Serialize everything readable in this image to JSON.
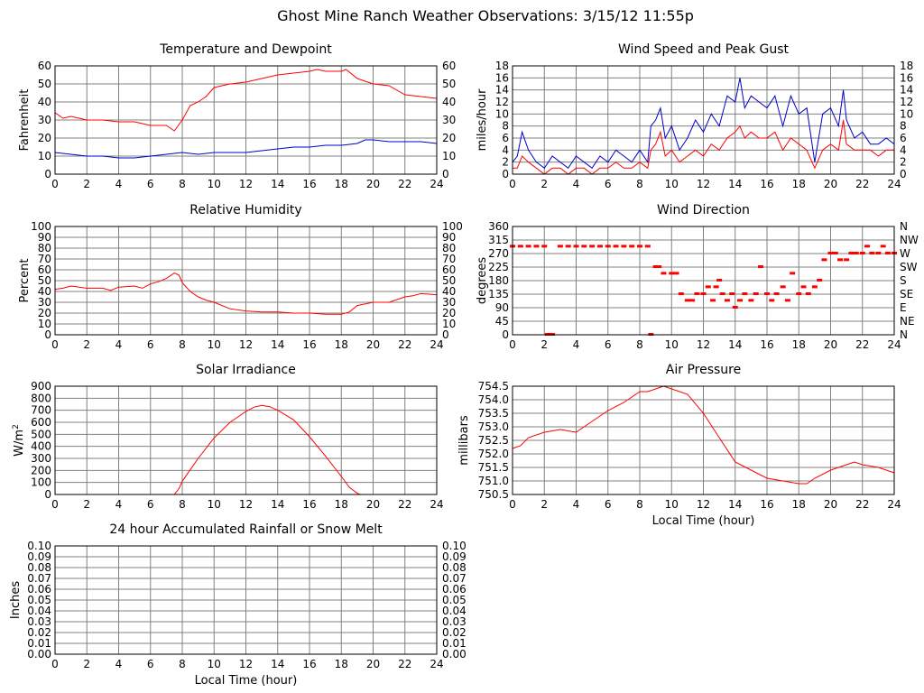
{
  "page": {
    "title": "Ghost Mine Ranch Weather Observations: 3/15/12 11:55p"
  },
  "colors": {
    "grid": "#808080",
    "frame": "#000000",
    "primary_series": "#ff0000",
    "secondary_series": "#0000cc"
  },
  "chart_data": [
    {
      "id": "temp",
      "type": "line",
      "title": "Temperature and Dewpoint",
      "xlabel": "",
      "ylabel": "Fahrenheit",
      "xlim": [
        0,
        24
      ],
      "ylim": [
        0,
        60
      ],
      "x_ticks": [
        0,
        2,
        4,
        6,
        8,
        10,
        12,
        14,
        16,
        18,
        20,
        22,
        24
      ],
      "y_ticks": [
        0,
        10,
        20,
        30,
        40,
        50,
        60
      ],
      "right_ticks": [
        "0",
        "10",
        "20",
        "30",
        "40",
        "50",
        "60"
      ],
      "grid": true,
      "series": [
        {
          "color": "#ff0000",
          "x": [
            0,
            0.5,
            1,
            2,
            3,
            4,
            5,
            6,
            7,
            7.5,
            8,
            8.5,
            9,
            9.5,
            10,
            11,
            12,
            13,
            14,
            15,
            16,
            16.5,
            17,
            18,
            18.3,
            19,
            20,
            21,
            22,
            23,
            24
          ],
          "y": [
            34,
            31,
            32,
            30,
            30,
            29,
            29,
            27,
            27,
            24,
            30,
            38,
            40,
            43,
            48,
            50,
            51,
            53,
            55,
            56,
            57,
            58,
            57,
            57,
            58,
            53,
            50,
            49,
            44,
            43,
            42
          ]
        },
        {
          "color": "#0000cc",
          "x": [
            0,
            1,
            2,
            3,
            4,
            5,
            6,
            7,
            8,
            9,
            10,
            11,
            12,
            13,
            14,
            15,
            16,
            17,
            18,
            19,
            19.5,
            20,
            21,
            22,
            23,
            24
          ],
          "y": [
            12,
            11,
            10,
            10,
            9,
            9,
            10,
            11,
            12,
            11,
            12,
            12,
            12,
            13,
            14,
            15,
            15,
            16,
            16,
            17,
            19,
            19,
            18,
            18,
            18,
            17
          ]
        }
      ]
    },
    {
      "id": "wind",
      "type": "line",
      "title": "Wind Speed and Peak Gust",
      "xlabel": "",
      "ylabel": "miles/hour",
      "xlim": [
        0,
        24
      ],
      "ylim": [
        0,
        18
      ],
      "x_ticks": [
        0,
        2,
        4,
        6,
        8,
        10,
        12,
        14,
        16,
        18,
        20,
        22,
        24
      ],
      "y_ticks": [
        0,
        2,
        4,
        6,
        8,
        10,
        12,
        14,
        16,
        18
      ],
      "right_ticks": [
        "0",
        "2",
        "4",
        "6",
        "8",
        "10",
        "12",
        "14",
        "16",
        "18"
      ],
      "grid": true,
      "series": [
        {
          "color": "#0000cc",
          "x": [
            0,
            0.3,
            0.6,
            1,
            1.5,
            2,
            2.5,
            3,
            3.5,
            4,
            4.5,
            5,
            5.5,
            6,
            6.5,
            7,
            7.5,
            8,
            8.5,
            8.7,
            9,
            9.3,
            9.6,
            10,
            10.5,
            11,
            11.5,
            12,
            12.5,
            13,
            13.5,
            14,
            14.3,
            14.6,
            15,
            15.5,
            16,
            16.5,
            17,
            17.5,
            18,
            18.5,
            19,
            19.5,
            20,
            20.5,
            20.8,
            21,
            21.5,
            22,
            22.5,
            23,
            23.5,
            24
          ],
          "y": [
            2,
            3,
            7,
            4,
            2,
            1,
            3,
            2,
            1,
            3,
            2,
            1,
            3,
            2,
            4,
            3,
            2,
            4,
            2,
            8,
            9,
            11,
            6,
            8,
            4,
            6,
            9,
            7,
            10,
            8,
            13,
            12,
            16,
            11,
            13,
            12,
            11,
            13,
            8,
            13,
            10,
            11,
            2,
            10,
            11,
            8,
            14,
            9,
            6,
            7,
            5,
            5,
            6,
            5
          ]
        },
        {
          "color": "#ff0000",
          "x": [
            0,
            0.3,
            0.6,
            1,
            1.5,
            2,
            2.5,
            3,
            3.5,
            4,
            4.5,
            5,
            5.5,
            6,
            6.5,
            7,
            7.5,
            8,
            8.5,
            8.7,
            9,
            9.3,
            9.6,
            10,
            10.5,
            11,
            11.5,
            12,
            12.5,
            13,
            13.5,
            14,
            14.3,
            14.6,
            15,
            15.5,
            16,
            16.5,
            17,
            17.5,
            18,
            18.5,
            19,
            19.5,
            20,
            20.5,
            20.8,
            21,
            21.5,
            22,
            22.5,
            23,
            23.5,
            24
          ],
          "y": [
            1,
            1,
            3,
            2,
            1,
            0,
            1,
            1,
            0,
            1,
            1,
            0,
            1,
            1,
            2,
            1,
            1,
            2,
            1,
            4,
            5,
            7,
            3,
            4,
            2,
            3,
            4,
            3,
            5,
            4,
            6,
            7,
            8,
            6,
            7,
            6,
            6,
            7,
            4,
            6,
            5,
            4,
            1,
            4,
            5,
            4,
            9,
            5,
            4,
            4,
            4,
            3,
            4,
            4
          ]
        }
      ]
    },
    {
      "id": "rh",
      "type": "line",
      "title": "Relative Humidity",
      "xlabel": "",
      "ylabel": "Percent",
      "xlim": [
        0,
        24
      ],
      "ylim": [
        0,
        100
      ],
      "x_ticks": [
        0,
        2,
        4,
        6,
        8,
        10,
        12,
        14,
        16,
        18,
        20,
        22,
        24
      ],
      "y_ticks": [
        0,
        10,
        20,
        30,
        40,
        50,
        60,
        70,
        80,
        90,
        100
      ],
      "right_ticks": [
        "0",
        "10",
        "20",
        "30",
        "40",
        "50",
        "60",
        "70",
        "80",
        "90",
        "100"
      ],
      "grid": true,
      "series": [
        {
          "color": "#ff0000",
          "x": [
            0,
            0.5,
            1,
            2,
            3,
            3.5,
            4,
            5,
            5.5,
            6,
            6.5,
            7,
            7.5,
            7.8,
            8,
            8.5,
            9,
            9.5,
            10,
            10.5,
            11,
            12,
            13,
            14,
            15,
            16,
            17,
            18,
            18.5,
            19,
            20,
            21,
            22,
            22.5,
            23,
            24
          ],
          "y": [
            42,
            43,
            45,
            43,
            43,
            41,
            44,
            45,
            43,
            47,
            49,
            52,
            57,
            55,
            48,
            40,
            35,
            32,
            30,
            27,
            24,
            22,
            21,
            21,
            20,
            20,
            19,
            19,
            21,
            27,
            30,
            30,
            35,
            36,
            38,
            37
          ]
        }
      ]
    },
    {
      "id": "dir",
      "type": "scatter",
      "title": "Wind Direction",
      "xlabel": "",
      "ylabel": "degrees",
      "xlim": [
        0,
        24
      ],
      "ylim": [
        0,
        360
      ],
      "x_ticks": [
        0,
        2,
        4,
        6,
        8,
        10,
        12,
        14,
        16,
        18,
        20,
        22,
        24
      ],
      "y_ticks": [
        0,
        45,
        90,
        135,
        180,
        225,
        270,
        315,
        360
      ],
      "right_ticks": [
        "N",
        "NE",
        "E",
        "SE",
        "S",
        "SW",
        "W",
        "NW",
        "N"
      ],
      "grid": true,
      "series": [
        {
          "color": "#ff0000",
          "x": [
            0,
            0.5,
            1,
            1.5,
            2,
            2.2,
            2.5,
            3,
            3.5,
            4,
            4.5,
            5,
            5.5,
            6,
            6.5,
            7,
            7.5,
            8,
            8.5,
            8.7,
            9,
            9.2,
            9.5,
            10,
            10.3,
            10.6,
            11,
            11.3,
            11.6,
            12,
            12.3,
            12.6,
            12.8,
            13,
            13.2,
            13.5,
            13.8,
            14,
            14.3,
            14.6,
            15,
            15.3,
            15.6,
            16,
            16.3,
            16.6,
            17,
            17.3,
            17.6,
            18,
            18.3,
            18.6,
            19,
            19.3,
            19.6,
            20,
            20.3,
            20.6,
            21,
            21.3,
            21.6,
            22,
            22.3,
            22.6,
            23,
            23.3,
            23.6,
            24
          ],
          "y": [
            293,
            293,
            293,
            293,
            293,
            0,
            0,
            293,
            293,
            293,
            293,
            293,
            293,
            293,
            293,
            293,
            293,
            293,
            293,
            0,
            225,
            225,
            203,
            203,
            203,
            135,
            113,
            113,
            135,
            135,
            158,
            113,
            158,
            180,
            135,
            113,
            135,
            90,
            113,
            135,
            113,
            135,
            225,
            135,
            113,
            135,
            158,
            113,
            203,
            135,
            158,
            135,
            158,
            180,
            248,
            270,
            270,
            248,
            248,
            270,
            270,
            270,
            293,
            270,
            270,
            293,
            270,
            270
          ]
        }
      ]
    },
    {
      "id": "solar",
      "type": "line",
      "title": "Solar Irradiance",
      "xlabel": "",
      "ylabel": "W/m2",
      "xlim": [
        0,
        24
      ],
      "ylim": [
        0,
        900
      ],
      "x_ticks": [
        0,
        2,
        4,
        6,
        8,
        10,
        12,
        14,
        16,
        18,
        20,
        22,
        24
      ],
      "y_ticks": [
        0,
        100,
        200,
        300,
        400,
        500,
        600,
        700,
        800,
        900
      ],
      "right_ticks": [],
      "grid": true,
      "series": [
        {
          "color": "#ff0000",
          "x": [
            0,
            7.5,
            7.8,
            8,
            9,
            10,
            11,
            12,
            12.5,
            13,
            13.5,
            14,
            15,
            16,
            17,
            18,
            18.5,
            19,
            19.2,
            24
          ],
          "y": [
            0,
            0,
            50,
            110,
            300,
            470,
            600,
            690,
            725,
            740,
            730,
            700,
            620,
            480,
            320,
            150,
            60,
            10,
            0,
            0
          ]
        }
      ]
    },
    {
      "id": "pressure",
      "type": "line",
      "title": "Air Pressure",
      "xlabel": "Local Time (hour)",
      "ylabel": "millibars",
      "xlim": [
        0,
        24
      ],
      "ylim": [
        750.5,
        754.5
      ],
      "x_ticks": [
        0,
        2,
        4,
        6,
        8,
        10,
        12,
        14,
        16,
        18,
        20,
        22,
        24
      ],
      "y_ticks": [
        750.5,
        751.0,
        751.5,
        752.0,
        752.5,
        753.0,
        753.5,
        754.0,
        754.5
      ],
      "right_ticks": [],
      "grid": true,
      "series": [
        {
          "color": "#ff0000",
          "x": [
            0,
            0.5,
            1,
            2,
            3,
            4,
            5,
            6,
            7,
            8,
            8.5,
            9,
            9.5,
            10,
            11,
            12,
            13,
            14,
            15,
            16,
            17,
            18,
            18.5,
            19,
            20,
            21,
            21.5,
            22,
            23,
            24
          ],
          "y": [
            752.2,
            752.3,
            752.6,
            752.8,
            752.9,
            752.8,
            753.2,
            753.6,
            753.9,
            754.3,
            754.3,
            754.4,
            754.5,
            754.4,
            754.2,
            753.5,
            752.6,
            751.7,
            751.4,
            751.1,
            751.0,
            750.9,
            750.9,
            751.1,
            751.4,
            751.6,
            751.7,
            751.6,
            751.5,
            751.3
          ]
        }
      ]
    },
    {
      "id": "rain",
      "type": "line",
      "title": "24 hour Accumulated Rainfall or Snow Melt",
      "xlabel": "Local Time (hour)",
      "ylabel": "Inches",
      "xlim": [
        0,
        24
      ],
      "ylim": [
        0,
        0.1
      ],
      "x_ticks": [
        0,
        2,
        4,
        6,
        8,
        10,
        12,
        14,
        16,
        18,
        20,
        22,
        24
      ],
      "y_ticks": [
        "0.00",
        "0.01",
        "0.02",
        "0.03",
        "0.04",
        "0.05",
        "0.06",
        "0.07",
        "0.08",
        "0.09",
        "0.10"
      ],
      "right_ticks": [
        "0.00",
        "0.01",
        "0.02",
        "0.03",
        "0.04",
        "0.05",
        "0.06",
        "0.07",
        "0.08",
        "0.09",
        "0.10"
      ],
      "grid": true,
      "series": [
        {
          "color": "#ff0000",
          "x": [
            0,
            24
          ],
          "y": [
            0,
            0
          ]
        }
      ]
    }
  ]
}
